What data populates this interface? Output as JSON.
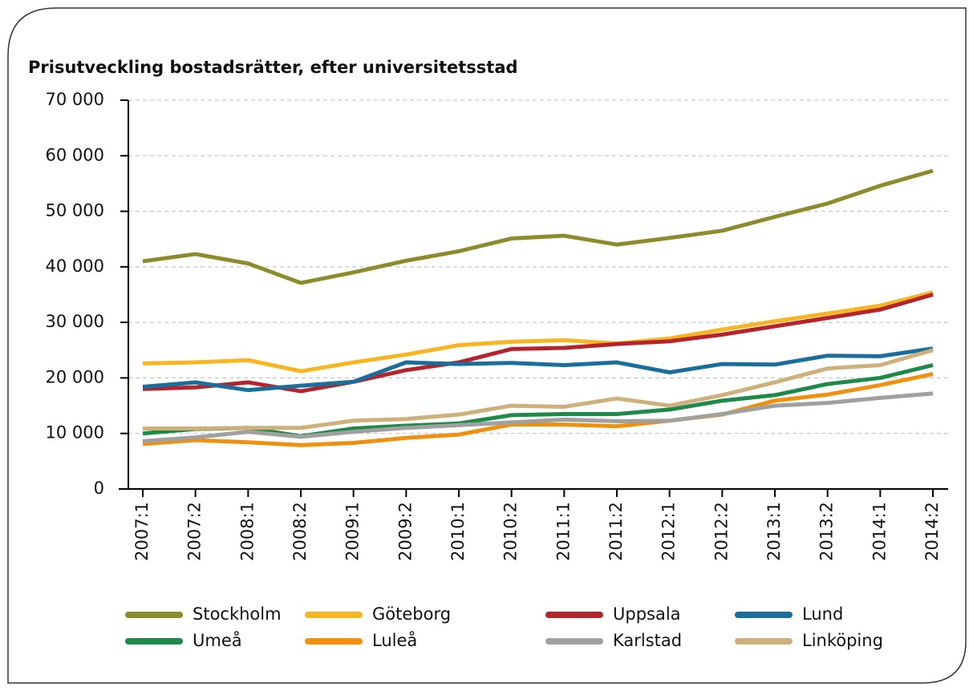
{
  "chart_data": {
    "type": "line",
    "title": "Prisutveckling bostadsrätter, efter universitetsstad",
    "categories": [
      "2007:1",
      "2007:2",
      "2008:1",
      "2008:2",
      "2009:1",
      "2009:2",
      "2010:1",
      "2010:2",
      "2011:1",
      "2011:2",
      "2012:1",
      "2012:2",
      "2013:1",
      "2013:2",
      "2014:1",
      "2014:2"
    ],
    "ylim": [
      0,
      70000
    ],
    "yticks": [
      {
        "value": 0,
        "label": "0"
      },
      {
        "value": 10000,
        "label": "10 000"
      },
      {
        "value": 20000,
        "label": "20 000"
      },
      {
        "value": 30000,
        "label": "30 000"
      },
      {
        "value": 40000,
        "label": "40 000"
      },
      {
        "value": 50000,
        "label": "50 000"
      },
      {
        "value": 60000,
        "label": "60 000"
      },
      {
        "value": 70000,
        "label": "70 000"
      }
    ],
    "grid": true,
    "series": [
      {
        "name": "Stockholm",
        "color": "#8c8c2c",
        "values": [
          41000,
          42300,
          40600,
          37100,
          39000,
          41100,
          42800,
          45100,
          45600,
          44000,
          45200,
          46500,
          49000,
          51400,
          54600,
          57300
        ]
      },
      {
        "name": "Göteborg",
        "color": "#f9b520",
        "values": [
          22600,
          22800,
          23200,
          21200,
          22800,
          24200,
          25900,
          26500,
          26800,
          26200,
          27100,
          28700,
          30200,
          31600,
          33000,
          35400
        ]
      },
      {
        "name": "Uppsala",
        "color": "#b5242c",
        "values": [
          18000,
          18300,
          19200,
          17600,
          19300,
          21400,
          22800,
          25200,
          25400,
          26100,
          26600,
          27800,
          29300,
          30800,
          32300,
          35000
        ]
      },
      {
        "name": "Lund",
        "color": "#1a6e9c",
        "values": [
          18400,
          19200,
          17800,
          18600,
          19300,
          22800,
          22500,
          22700,
          22300,
          22800,
          21000,
          22500,
          22400,
          24000,
          23900,
          25300
        ]
      },
      {
        "name": "Umeå",
        "color": "#1e8a4a",
        "values": [
          10000,
          10800,
          11000,
          9500,
          10900,
          11400,
          11800,
          13300,
          13500,
          13500,
          14300,
          15900,
          16900,
          18900,
          20000,
          22300
        ]
      },
      {
        "name": "Luleå",
        "color": "#f0900f",
        "values": [
          8100,
          8800,
          8400,
          7900,
          8300,
          9200,
          9800,
          11600,
          11600,
          11300,
          12300,
          13400,
          15900,
          17000,
          18700,
          20700
        ]
      },
      {
        "name": "Karlstad",
        "color": "#a0a0a0",
        "values": [
          8600,
          9300,
          10300,
          9400,
          10300,
          11000,
          11500,
          12000,
          12500,
          12200,
          12300,
          13500,
          15000,
          15500,
          16400,
          17200
        ]
      },
      {
        "name": "Linköping",
        "color": "#cdb07a",
        "values": [
          10900,
          10900,
          11000,
          11000,
          12300,
          12600,
          13400,
          15000,
          14800,
          16300,
          15000,
          16900,
          19200,
          21700,
          22300,
          25000
        ]
      }
    ]
  }
}
